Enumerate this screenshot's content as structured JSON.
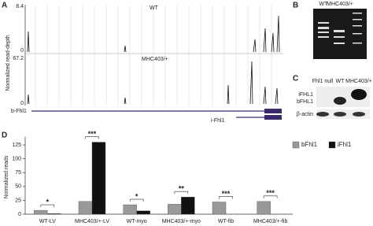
{
  "panel_a": {
    "label": "A",
    "ylabel": "Normalized read-depth",
    "track1": {
      "name": "WT",
      "max": "8.4",
      "min": "0"
    },
    "track2": {
      "name": "MHC403/+",
      "max": "67.2",
      "min": "0"
    },
    "genes": [
      "b-Fhl1",
      "i-Fhl1"
    ]
  },
  "panel_b": {
    "label": "B",
    "lanes": [
      "WT",
      "MHC403/+"
    ]
  },
  "panel_c": {
    "label": "C",
    "lanes": [
      "Fhl1 null",
      "WT",
      "MHC403/+"
    ],
    "bands": [
      "iFHL1",
      "bFHL1",
      "β-actin"
    ]
  },
  "chart_data": {
    "type": "bar",
    "label": "D",
    "ylabel": "Normalized reads",
    "categories": [
      "WT-LV",
      "MHC403/+-LV",
      "WT-myo",
      "MHC403/+-myo",
      "WT-fib",
      "MHC403/+-fib"
    ],
    "series": [
      {
        "name": "bFhl1",
        "color": "#999999",
        "values": [
          7,
          23,
          17,
          18,
          22,
          23
        ]
      },
      {
        "name": "iFhl1",
        "color": "#111111",
        "values": [
          1,
          130,
          6,
          31,
          0,
          0
        ]
      }
    ],
    "significance": [
      "*",
      "***",
      "*",
      "**",
      "***",
      "***"
    ],
    "ylim": [
      0,
      140
    ],
    "yticks": [
      0,
      25,
      50,
      75,
      100,
      125
    ],
    "legend": "upper right"
  }
}
